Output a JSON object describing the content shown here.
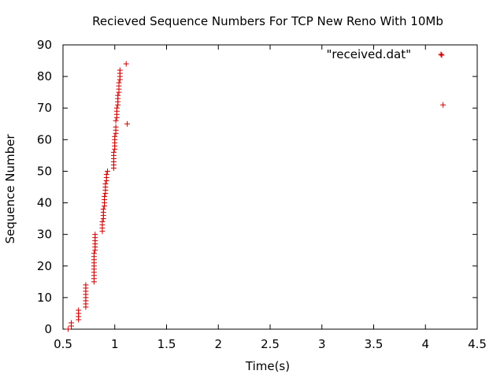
{
  "chart_data": {
    "type": "scatter",
    "title": "Recieved Sequence Numbers For TCP New Reno With 10Mb",
    "xlabel": "Time(s)",
    "ylabel": "Sequence Number",
    "xlim": [
      0.5,
      4.5
    ],
    "ylim": [
      0,
      90
    ],
    "xticks": [
      "0.5",
      "1",
      "1.5",
      "2",
      "2.5",
      "3",
      "3.5",
      "4",
      "4.5"
    ],
    "yticks": [
      "0",
      "10",
      "20",
      "30",
      "40",
      "50",
      "60",
      "70",
      "80",
      "90"
    ],
    "grid": false,
    "legend_position": "top-right",
    "marker": "plus",
    "color": "#cc0000",
    "series": [
      {
        "name": "\"received.dat\"",
        "x": [
          0.55,
          0.58,
          0.58,
          0.65,
          0.65,
          0.65,
          0.65,
          0.72,
          0.72,
          0.72,
          0.72,
          0.72,
          0.72,
          0.72,
          0.72,
          0.8,
          0.8,
          0.8,
          0.8,
          0.8,
          0.8,
          0.8,
          0.8,
          0.8,
          0.8,
          0.81,
          0.81,
          0.81,
          0.81,
          0.81,
          0.81,
          0.88,
          0.88,
          0.88,
          0.88,
          0.89,
          0.89,
          0.89,
          0.89,
          0.9,
          0.9,
          0.9,
          0.9,
          0.91,
          0.91,
          0.91,
          0.91,
          0.92,
          0.92,
          0.92,
          0.93,
          0.99,
          0.99,
          0.99,
          0.99,
          0.99,
          0.99,
          1.0,
          1.0,
          1.0,
          1.0,
          1.0,
          1.01,
          1.01,
          1.01,
          1.01,
          1.02,
          1.02,
          1.02,
          1.02,
          1.03,
          1.03,
          1.03,
          1.03,
          1.04,
          1.04,
          1.04,
          1.04,
          1.05,
          1.05,
          1.05,
          1.05,
          1.11,
          1.12,
          4.15,
          4.17
        ],
        "y": [
          0,
          1,
          2,
          3,
          4,
          5,
          6,
          7,
          8,
          9,
          10,
          11,
          12,
          13,
          14,
          15,
          16,
          17,
          18,
          19,
          20,
          21,
          22,
          23,
          24,
          25,
          26,
          27,
          28,
          29,
          30,
          31,
          32,
          33,
          34,
          35,
          36,
          37,
          38,
          39,
          40,
          41,
          42,
          43,
          44,
          45,
          46,
          47,
          48,
          49,
          50,
          51,
          52,
          53,
          54,
          55,
          56,
          57,
          58,
          59,
          60,
          61,
          62,
          63,
          64,
          66,
          67,
          68,
          69,
          70,
          71,
          72,
          73,
          74,
          75,
          76,
          77,
          78,
          79,
          80,
          81,
          82,
          84,
          65,
          87,
          71
        ]
      }
    ]
  }
}
